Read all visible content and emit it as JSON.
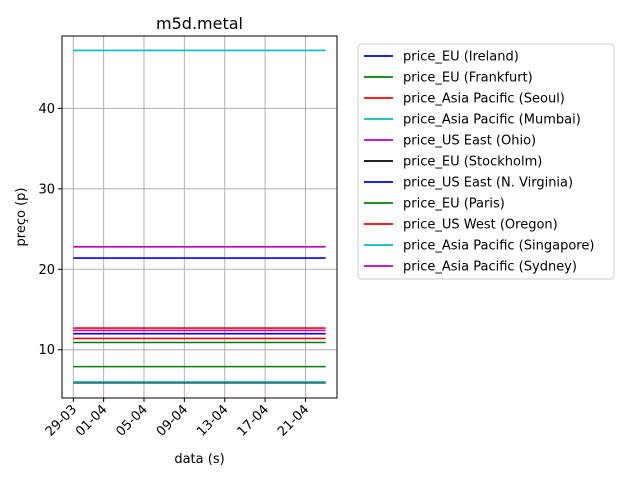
{
  "chart_data": {
    "type": "line",
    "title": "m5d.metal",
    "xlabel": "data (s)",
    "ylabel": "preço (p)",
    "x_range": [
      "2021-03-29",
      "2021-04-23"
    ],
    "ylim": [
      4,
      49
    ],
    "x_ticks": [
      {
        "date": "2021-03-29",
        "label": "29-03"
      },
      {
        "date": "2021-04-01",
        "label": "01-04"
      },
      {
        "date": "2021-04-05",
        "label": "05-04"
      },
      {
        "date": "2021-04-09",
        "label": "09-04"
      },
      {
        "date": "2021-04-13",
        "label": "13-04"
      },
      {
        "date": "2021-04-17",
        "label": "17-04"
      },
      {
        "date": "2021-04-21",
        "label": "21-04"
      }
    ],
    "y_ticks": [
      10,
      20,
      30,
      40
    ],
    "grid": true,
    "legend_position": "outside-right",
    "series": [
      {
        "name": "price_EU (Ireland)",
        "color": "#0000ff",
        "values": [
          12.0,
          12.0
        ]
      },
      {
        "name": "price_EU (Frankfurt)",
        "color": "#008000",
        "values": [
          7.9,
          7.9
        ]
      },
      {
        "name": "price_Asia Pacific (Seoul)",
        "color": "#ff0000",
        "values": [
          12.7,
          12.7
        ]
      },
      {
        "name": "price_Asia Pacific (Mumbai)",
        "color": "#00bfbf",
        "values": [
          47.2,
          47.2
        ]
      },
      {
        "name": "price_US East (Ohio)",
        "color": "#bf00bf",
        "values": [
          22.8,
          22.8
        ]
      },
      {
        "name": "price_EU (Stockholm)",
        "color": "#000000",
        "values": [
          5.9,
          5.9
        ]
      },
      {
        "name": "price_US East (N. Virginia)",
        "color": "#0000ff",
        "values": [
          21.4,
          21.4
        ]
      },
      {
        "name": "price_EU (Paris)",
        "color": "#008000",
        "values": [
          10.9,
          10.9
        ]
      },
      {
        "name": "price_US West (Oregon)",
        "color": "#ff0000",
        "values": [
          11.4,
          11.4
        ]
      },
      {
        "name": "price_Asia Pacific (Singapore)",
        "color": "#00bfbf",
        "values": [
          6.0,
          6.0
        ]
      },
      {
        "name": "price_Asia Pacific (Sydney)",
        "color": "#bf00bf",
        "values": [
          12.4,
          12.4
        ]
      }
    ]
  }
}
